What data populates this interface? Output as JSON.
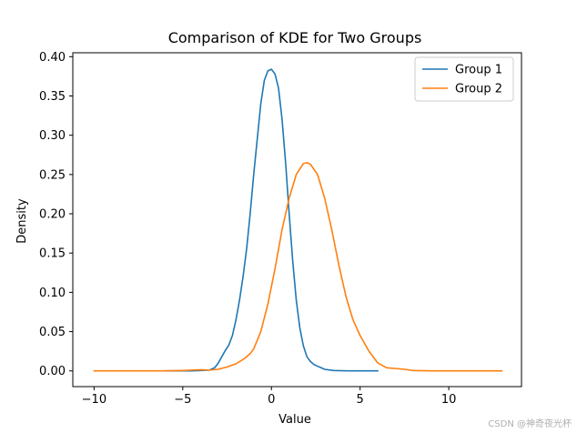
{
  "chart_data": {
    "type": "line",
    "title": "Comparison of KDE for Two Groups",
    "xlabel": "Value",
    "ylabel": "Density",
    "xlim": [
      -11.2,
      14.1
    ],
    "ylim": [
      -0.02,
      0.405
    ],
    "xticks": [
      -10,
      -5,
      0,
      5,
      10
    ],
    "xtick_labels": [
      "−10",
      "−5",
      "0",
      "5",
      "10"
    ],
    "yticks": [
      0.0,
      0.05,
      0.1,
      0.15,
      0.2,
      0.25,
      0.3,
      0.35,
      0.4
    ],
    "ytick_labels": [
      "0.00",
      "0.05",
      "0.10",
      "0.15",
      "0.20",
      "0.25",
      "0.30",
      "0.35",
      "0.40"
    ],
    "grid": false,
    "legend_position": "top-right",
    "series": [
      {
        "name": "Group 1",
        "color": "#1f77b4",
        "x": [
          -6.0,
          -4.5,
          -4.0,
          -3.5,
          -3.2,
          -3.0,
          -2.8,
          -2.6,
          -2.4,
          -2.2,
          -2.0,
          -1.8,
          -1.6,
          -1.4,
          -1.2,
          -1.0,
          -0.8,
          -0.6,
          -0.4,
          -0.2,
          0.0,
          0.2,
          0.4,
          0.6,
          0.8,
          1.0,
          1.2,
          1.4,
          1.6,
          1.8,
          2.0,
          2.2,
          2.4,
          2.6,
          2.8,
          3.0,
          3.5,
          4.5,
          6.0
        ],
        "y": [
          0.0,
          0.0,
          0.0005,
          0.001,
          0.004,
          0.01,
          0.018,
          0.026,
          0.033,
          0.045,
          0.065,
          0.09,
          0.12,
          0.155,
          0.2,
          0.25,
          0.295,
          0.34,
          0.37,
          0.382,
          0.384,
          0.378,
          0.36,
          0.32,
          0.265,
          0.2,
          0.14,
          0.09,
          0.055,
          0.032,
          0.018,
          0.012,
          0.008,
          0.006,
          0.004,
          0.002,
          0.0005,
          0.0,
          0.0
        ]
      },
      {
        "name": "Group 2",
        "color": "#ff7f0e",
        "x": [
          -10.0,
          -8.0,
          -6.0,
          -5.0,
          -4.5,
          -4.0,
          -3.5,
          -3.0,
          -2.5,
          -2.0,
          -1.5,
          -1.2,
          -1.0,
          -0.6,
          -0.2,
          0.2,
          0.6,
          1.0,
          1.4,
          1.8,
          2.0,
          2.2,
          2.6,
          3.0,
          3.4,
          3.8,
          4.2,
          4.6,
          5.0,
          5.5,
          6.0,
          6.5,
          7.0,
          7.5,
          8.0,
          9.0,
          11.0,
          13.0
        ],
        "y": [
          0.0,
          0.0,
          0.0,
          0.0005,
          0.001,
          0.0015,
          0.001,
          0.002,
          0.005,
          0.009,
          0.016,
          0.022,
          0.028,
          0.05,
          0.085,
          0.13,
          0.18,
          0.22,
          0.25,
          0.264,
          0.265,
          0.263,
          0.25,
          0.22,
          0.18,
          0.135,
          0.095,
          0.065,
          0.045,
          0.025,
          0.01,
          0.004,
          0.003,
          0.002,
          0.0005,
          0.0,
          0.0,
          0.0
        ]
      }
    ]
  },
  "watermark": "CSDN @神奇夜光杯"
}
